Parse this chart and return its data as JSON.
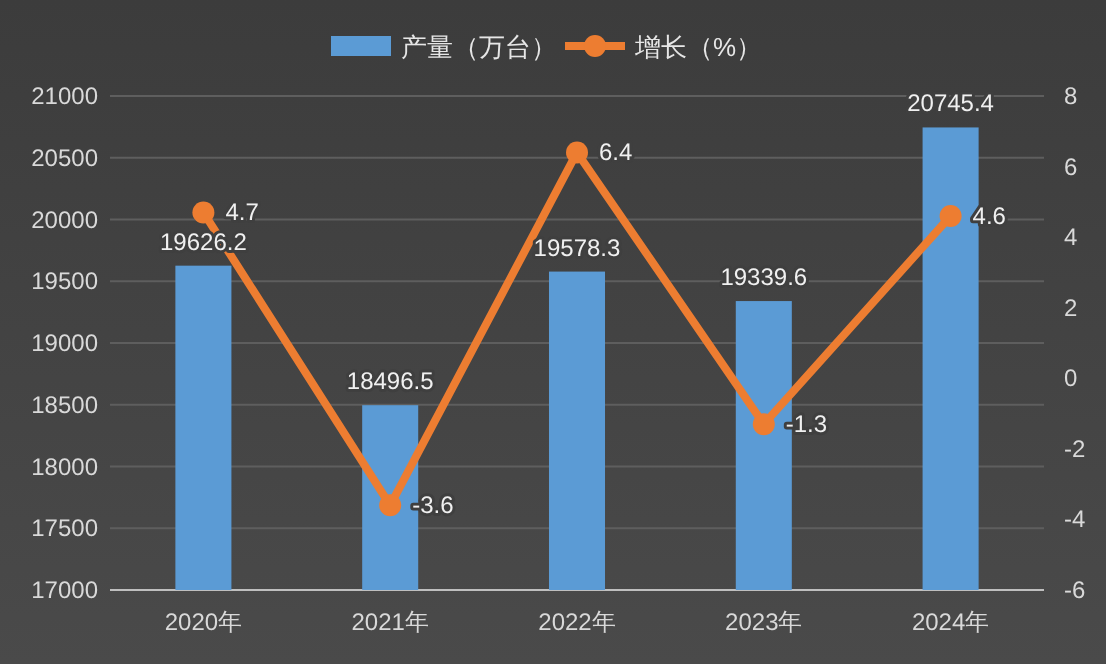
{
  "chart_data": {
    "type": "bar",
    "categories": [
      "2020年",
      "2021年",
      "2022年",
      "2023年",
      "2024年"
    ],
    "series": [
      {
        "name": "产量（万台）",
        "color": "#5b9bd5",
        "values": [
          19626.2,
          18496.5,
          19578.3,
          19339.6,
          20745.4
        ]
      },
      {
        "name": "增长（%）",
        "type": "line",
        "axis": "y2",
        "color": "#ed7d31",
        "values": [
          4.7,
          -3.6,
          6.4,
          -1.3,
          4.6
        ]
      }
    ],
    "ylim": [
      17000,
      21000
    ],
    "yticks": [
      17000,
      17500,
      18000,
      18500,
      19000,
      19500,
      20000,
      20500,
      21000
    ],
    "y2lim": [
      -6,
      8
    ],
    "y2ticks": [
      -6,
      -4,
      -2,
      0,
      2,
      4,
      6,
      8
    ],
    "grid": "y",
    "legend": "top",
    "marker": "circle",
    "data_labels": true
  }
}
